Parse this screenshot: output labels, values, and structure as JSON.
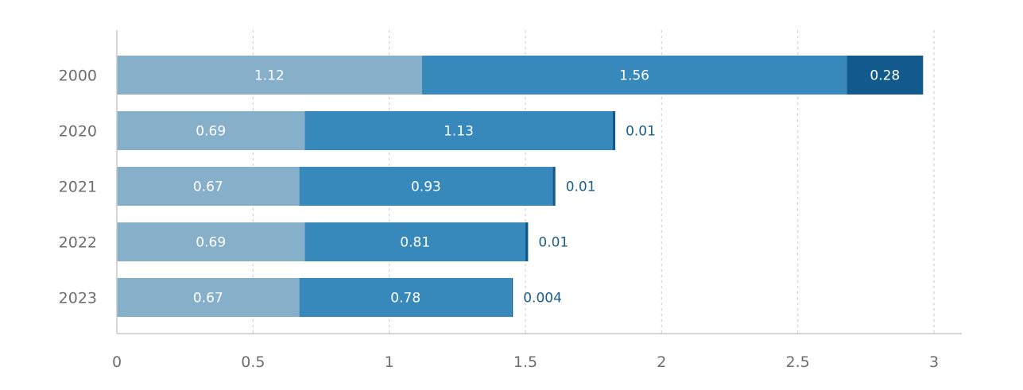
{
  "chart_data": {
    "type": "bar",
    "orientation": "horizontal",
    "stacked": true,
    "categories": [
      "2000",
      "2020",
      "2021",
      "2022",
      "2023"
    ],
    "series": [
      {
        "values": [
          1.12,
          0.69,
          0.67,
          0.69,
          0.67
        ],
        "labels": [
          "1.12",
          "0.69",
          "0.67",
          "0.69",
          "0.67"
        ],
        "color": "#86afc9"
      },
      {
        "values": [
          1.56,
          1.13,
          0.93,
          0.81,
          0.78
        ],
        "labels": [
          "1.56",
          "1.13",
          "0.93",
          "0.81",
          "0.78"
        ],
        "color": "#3789bb"
      },
      {
        "values": [
          0.28,
          0.01,
          0.01,
          0.01,
          0.004
        ],
        "labels": [
          "0.28",
          "0.01",
          "0.01",
          "0.01",
          "0.004"
        ],
        "color": "#135a8c"
      }
    ],
    "xlim": [
      0,
      3
    ],
    "xticks": [
      0,
      0.5,
      1,
      1.5,
      2,
      2.5,
      3
    ],
    "xtick_labels": [
      "0",
      "0.5",
      "1",
      "1.5",
      "2",
      "2.5",
      "3"
    ],
    "grid": "vertical dashed",
    "legend": false,
    "title": "",
    "xlabel": "",
    "ylabel": ""
  }
}
